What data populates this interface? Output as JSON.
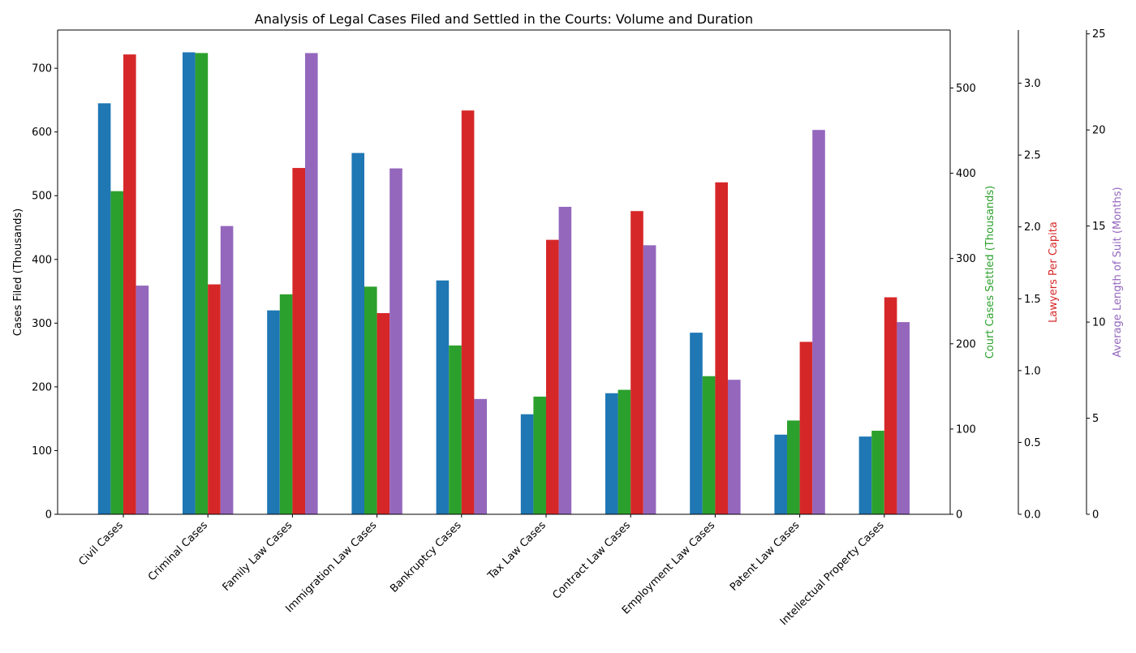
{
  "chart_data": {
    "type": "bar",
    "title": "Analysis of Legal Cases Filed and Settled in the Courts: Volume and Duration",
    "categories": [
      "Civil Cases",
      "Criminal Cases",
      "Family Law Cases",
      "Immigration Law Cases",
      "Bankruptcy Cases",
      "Tax Law Cases",
      "Contract Law Cases",
      "Employment Law Cases",
      "Patent Law Cases",
      "Intellectual Property Cases"
    ],
    "series": [
      {
        "name": "",
        "axis_label": "Cases Filed (Thousands)",
        "color": "#1f77b4",
        "ylim": [
          0,
          760
        ],
        "ticks": [
          0,
          100,
          200,
          300,
          400,
          500,
          600,
          700
        ],
        "values": [
          645,
          725,
          320,
          567,
          367,
          157,
          190,
          285,
          125,
          122
        ]
      },
      {
        "name": "",
        "axis_label": "Court Cases Settled (Thousands)",
        "color": "#2ca02c",
        "ylim": [
          0,
          568
        ],
        "ticks": [
          0,
          100,
          200,
          300,
          400,
          500
        ],
        "values": [
          379,
          541,
          258,
          267,
          198,
          138,
          146,
          162,
          110,
          98
        ]
      },
      {
        "name": "",
        "axis_label": "Lawyers Per Capita",
        "color": "#d62728",
        "ylim": [
          0,
          3.37
        ],
        "ticks": [
          0.0,
          0.5,
          1.0,
          1.5,
          2.0,
          2.5,
          3.0
        ],
        "tick_format": "fixed1",
        "values": [
          3.2,
          1.6,
          2.41,
          1.4,
          2.81,
          1.91,
          2.11,
          2.31,
          1.2,
          1.51
        ]
      },
      {
        "name": "",
        "axis_label": "Average Length of Suit (Months)",
        "color": "#9467bd",
        "ylim": [
          0,
          25.2
        ],
        "ticks": [
          0,
          5,
          10,
          15,
          20,
          25
        ],
        "values": [
          11.9,
          15.0,
          24.0,
          18.0,
          6.0,
          16.0,
          14.0,
          7.0,
          20.0,
          10.0
        ]
      }
    ],
    "grid": false
  }
}
